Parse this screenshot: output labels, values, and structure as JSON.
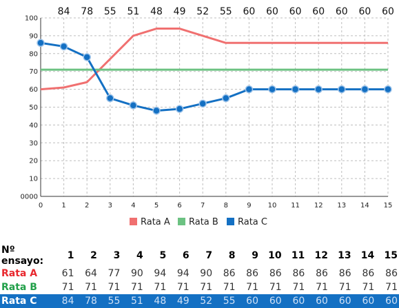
{
  "chart_data": {
    "type": "line",
    "x": [
      0,
      1,
      2,
      3,
      4,
      5,
      6,
      7,
      8,
      9,
      10,
      11,
      12,
      13,
      14,
      15
    ],
    "xlim": [
      0,
      15
    ],
    "ylim": [
      0,
      100
    ],
    "y_ticks": [
      "0000",
      "10",
      "20",
      "30",
      "40",
      "50",
      "60",
      "70",
      "80",
      "90",
      "100"
    ],
    "grid": true,
    "legend": "bottom",
    "top_labels": [
      "84",
      "78",
      "55",
      "51",
      "48",
      "49",
      "52",
      "55",
      "60",
      "60",
      "60",
      "60",
      "60",
      "60",
      "60"
    ],
    "series": [
      {
        "name": "Rata A",
        "color": "#f07070",
        "markers": false,
        "values": [
          60,
          61,
          64,
          77,
          90,
          94,
          94,
          90,
          86,
          86,
          86,
          86,
          86,
          86,
          86,
          86
        ]
      },
      {
        "name": "Rata B",
        "color": "#6cc282",
        "markers": false,
        "values": [
          71,
          71,
          71,
          71,
          71,
          71,
          71,
          71,
          71,
          71,
          71,
          71,
          71,
          71,
          71,
          71
        ]
      },
      {
        "name": "Rata C",
        "color": "#1470c3",
        "markers": true,
        "values": [
          86,
          84,
          78,
          55,
          51,
          48,
          49,
          52,
          55,
          60,
          60,
          60,
          60,
          60,
          60,
          60
        ]
      }
    ]
  },
  "table": {
    "header_label": "Nº ensayo:",
    "columns": [
      "1",
      "2",
      "3",
      "4",
      "5",
      "6",
      "7",
      "8",
      "9",
      "10",
      "11",
      "12",
      "13",
      "14",
      "15"
    ],
    "rows": [
      {
        "label": "Rata A",
        "label_color": "#e8282e",
        "values": [
          "61",
          "64",
          "77",
          "90",
          "94",
          "94",
          "90",
          "86",
          "86",
          "86",
          "86",
          "86",
          "86",
          "86",
          "86"
        ]
      },
      {
        "label": "Rata B",
        "label_color": "#22a04a",
        "values": [
          "71",
          "71",
          "71",
          "71",
          "71",
          "71",
          "71",
          "71",
          "71",
          "71",
          "71",
          "71",
          "71",
          "71",
          "71"
        ]
      },
      {
        "label": "Rata C",
        "label_color": "#ffffff",
        "values": [
          "84",
          "78",
          "55",
          "51",
          "48",
          "49",
          "52",
          "55",
          "60",
          "60",
          "60",
          "60",
          "60",
          "60",
          "60"
        ]
      }
    ]
  }
}
